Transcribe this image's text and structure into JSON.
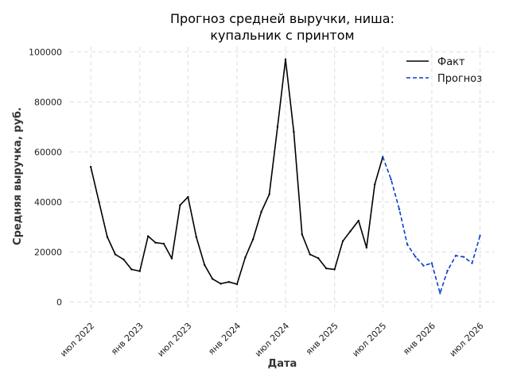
{
  "chart_data": {
    "type": "line",
    "title_lines": [
      "Прогноз средней выручки, ниша:",
      "купальник с принтом"
    ],
    "xlabel": "Дата",
    "ylabel": "Средняя выручка, руб.",
    "x_ticks": [
      {
        "date": "2022-07-01",
        "label": "июл 2022"
      },
      {
        "date": "2023-01-01",
        "label": "янв 2023"
      },
      {
        "date": "2023-07-01",
        "label": "июл 2023"
      },
      {
        "date": "2024-01-01",
        "label": "янв 2024"
      },
      {
        "date": "2024-07-01",
        "label": "июл 2024"
      },
      {
        "date": "2025-01-01",
        "label": "янв 2025"
      },
      {
        "date": "2025-07-01",
        "label": "июл 2025"
      },
      {
        "date": "2026-01-01",
        "label": "янв 2026"
      },
      {
        "date": "2026-07-01",
        "label": "июл 2026"
      }
    ],
    "y_ticks": [
      0,
      20000,
      40000,
      60000,
      80000,
      100000
    ],
    "xlim": [
      "2022-04-14",
      "2026-08-25"
    ],
    "ylim": [
      -4000,
      102000
    ],
    "grid": true,
    "legend_position": "top-right",
    "series": [
      {
        "name": "Факт",
        "color": "#000000",
        "style": "solid",
        "points": [
          {
            "x": "2022-07-01",
            "y": 54000
          },
          {
            "x": "2022-08-01",
            "y": 40000
          },
          {
            "x": "2022-09-01",
            "y": 26000
          },
          {
            "x": "2022-10-01",
            "y": 19000
          },
          {
            "x": "2022-11-01",
            "y": 17000
          },
          {
            "x": "2022-12-01",
            "y": 13000
          },
          {
            "x": "2023-01-01",
            "y": 12300
          },
          {
            "x": "2023-02-01",
            "y": 26300
          },
          {
            "x": "2023-03-01",
            "y": 23700
          },
          {
            "x": "2023-04-01",
            "y": 23300
          },
          {
            "x": "2023-05-01",
            "y": 17400
          },
          {
            "x": "2023-06-01",
            "y": 38700
          },
          {
            "x": "2023-07-01",
            "y": 42000
          },
          {
            "x": "2023-08-01",
            "y": 26000
          },
          {
            "x": "2023-09-01",
            "y": 14800
          },
          {
            "x": "2023-10-01",
            "y": 9200
          },
          {
            "x": "2023-11-01",
            "y": 7300
          },
          {
            "x": "2023-12-01",
            "y": 8000
          },
          {
            "x": "2024-01-01",
            "y": 7100
          },
          {
            "x": "2024-02-01",
            "y": 17800
          },
          {
            "x": "2024-03-01",
            "y": 25000
          },
          {
            "x": "2024-04-01",
            "y": 36000
          },
          {
            "x": "2024-05-01",
            "y": 43000
          },
          {
            "x": "2024-06-01",
            "y": 70000
          },
          {
            "x": "2024-07-01",
            "y": 97000
          },
          {
            "x": "2024-08-01",
            "y": 68000
          },
          {
            "x": "2024-09-01",
            "y": 27000
          },
          {
            "x": "2024-10-01",
            "y": 19000
          },
          {
            "x": "2024-11-01",
            "y": 17500
          },
          {
            "x": "2024-12-01",
            "y": 13400
          },
          {
            "x": "2025-01-01",
            "y": 13000
          },
          {
            "x": "2025-02-01",
            "y": 24300
          },
          {
            "x": "2025-03-01",
            "y": 28200
          },
          {
            "x": "2025-04-01",
            "y": 32500
          },
          {
            "x": "2025-05-01",
            "y": 21700
          },
          {
            "x": "2025-06-01",
            "y": 47000
          },
          {
            "x": "2025-07-01",
            "y": 58000
          }
        ]
      },
      {
        "name": "Прогноз",
        "color": "#0b3fc9",
        "style": "dashed",
        "points": [
          {
            "x": "2025-07-01",
            "y": 58000
          },
          {
            "x": "2025-08-01",
            "y": 49000
          },
          {
            "x": "2025-09-01",
            "y": 37000
          },
          {
            "x": "2025-10-01",
            "y": 23000
          },
          {
            "x": "2025-11-01",
            "y": 18000
          },
          {
            "x": "2025-12-01",
            "y": 14500
          },
          {
            "x": "2026-01-01",
            "y": 15500
          },
          {
            "x": "2026-02-01",
            "y": 3500
          },
          {
            "x": "2026-03-01",
            "y": 12500
          },
          {
            "x": "2026-04-01",
            "y": 18500
          },
          {
            "x": "2026-05-01",
            "y": 18000
          },
          {
            "x": "2026-06-01",
            "y": 15500
          },
          {
            "x": "2026-07-01",
            "y": 26500
          }
        ]
      }
    ]
  }
}
